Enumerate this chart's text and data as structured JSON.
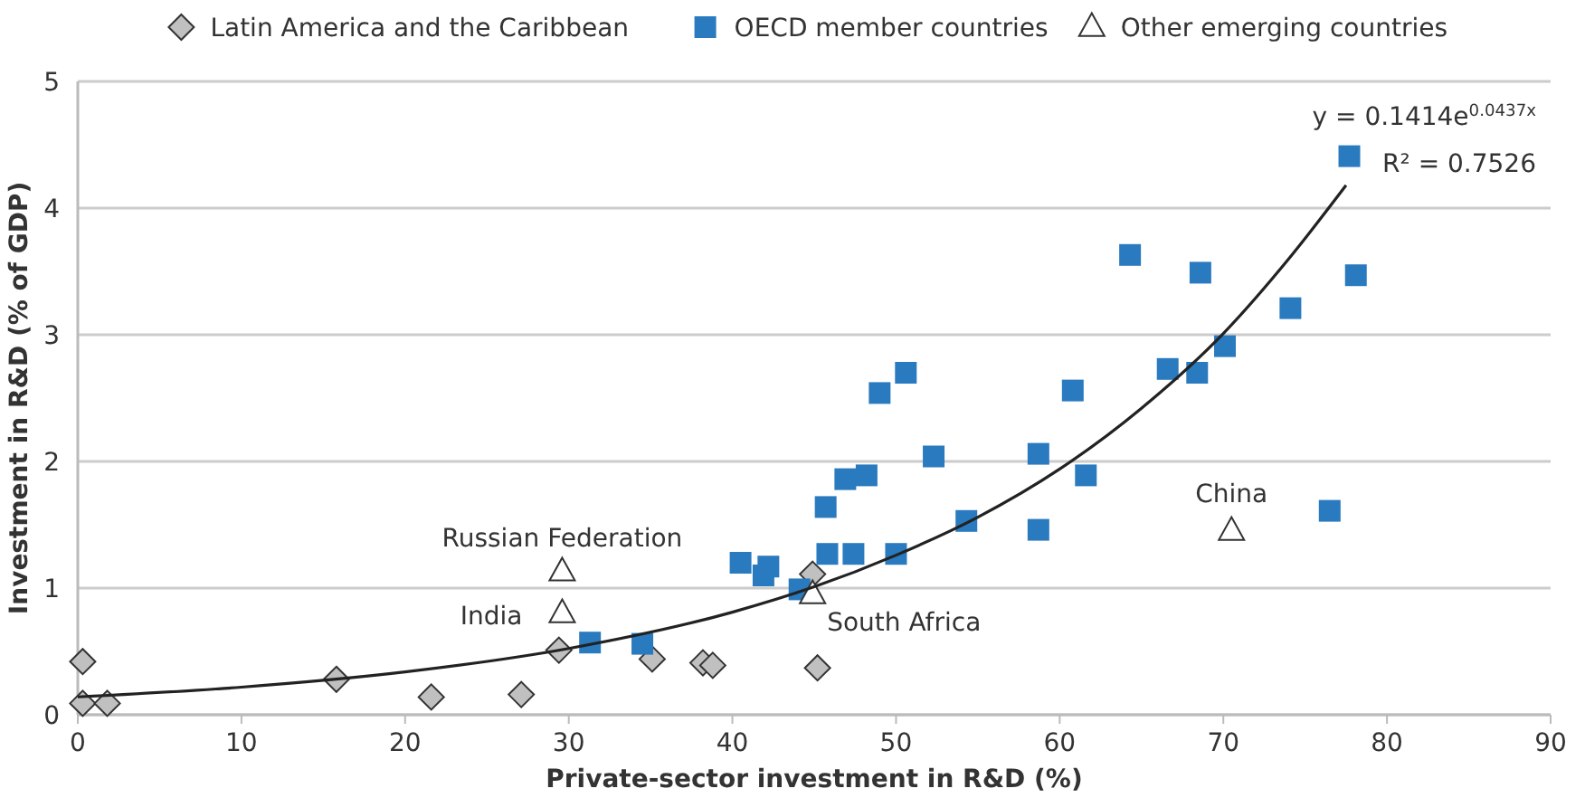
{
  "chart_data": {
    "type": "scatter",
    "xlabel": "Private-sector investment in R&D (%)",
    "ylabel": "Investment in R&D (% of GDP)",
    "xlim": [
      0,
      90
    ],
    "xticks": [
      0,
      10,
      20,
      30,
      40,
      50,
      60,
      70,
      80,
      90
    ],
    "ylim": [
      0,
      5
    ],
    "yticks": [
      0,
      1,
      2,
      3,
      4,
      5
    ],
    "grid": "y",
    "legend": "top",
    "series": [
      {
        "name": "Latin America and the Caribbean",
        "color": "#c0c0c0",
        "marker": "diamond",
        "x": [
          0.3,
          0.3,
          1.8,
          15.8,
          21.6,
          27.1,
          29.4,
          35.1,
          38.2,
          38.8,
          44.9,
          45.2
        ],
        "values": [
          0.42,
          0.09,
          0.09,
          0.28,
          0.14,
          0.16,
          0.51,
          0.44,
          0.41,
          0.39,
          1.11,
          0.37
        ]
      },
      {
        "name": "OECD member countries",
        "color": "#2a7abf",
        "marker": "square",
        "x": [
          31.3,
          34.5,
          40.5,
          41.9,
          42.2,
          44.1,
          45.7,
          45.8,
          46.9,
          48.2,
          47.4,
          49.0,
          50.0,
          50.6,
          52.3,
          54.3,
          58.7,
          58.7,
          60.8,
          61.6,
          64.3,
          66.6,
          68.6,
          68.4,
          70.1,
          74.1,
          77.7,
          78.1,
          76.5
        ],
        "values": [
          0.57,
          0.56,
          1.2,
          1.1,
          1.17,
          0.99,
          1.64,
          1.27,
          1.86,
          1.89,
          1.27,
          2.54,
          1.27,
          2.7,
          2.04,
          1.53,
          2.06,
          1.46,
          2.56,
          1.89,
          3.63,
          2.73,
          3.49,
          2.7,
          2.91,
          3.21,
          4.41,
          3.47,
          1.61
        ]
      },
      {
        "name": "Other emerging countries",
        "color": "#ffffff",
        "marker": "triangle",
        "x": [
          29.6,
          29.6,
          44.9,
          70.5
        ],
        "values": [
          1.13,
          0.8,
          0.95,
          1.45
        ]
      },
      {
        "type": "line",
        "color": "#222222",
        "marker": "none",
        "x": [
          0,
          10,
          20,
          30,
          40,
          45,
          50,
          55,
          60,
          65,
          70,
          74,
          77.5
        ],
        "values": [
          0.141,
          0.218,
          0.338,
          0.523,
          0.81,
          1.01,
          1.26,
          1.56,
          1.94,
          2.42,
          3.01,
          3.6,
          4.18
        ]
      }
    ],
    "annotations": [
      "y = 0.1414e$^{0.0437x}$",
      "R² = 0.7526",
      {
        "text": "Russian Federation",
        "x": 29.6,
        "y": 1.13
      },
      {
        "text": "India",
        "x": 29.6,
        "y": 0.8
      },
      {
        "text": "South Africa",
        "x": 44.9,
        "y": 0.95
      },
      {
        "text": "China",
        "x": 70.5,
        "y": 1.45
      }
    ]
  }
}
